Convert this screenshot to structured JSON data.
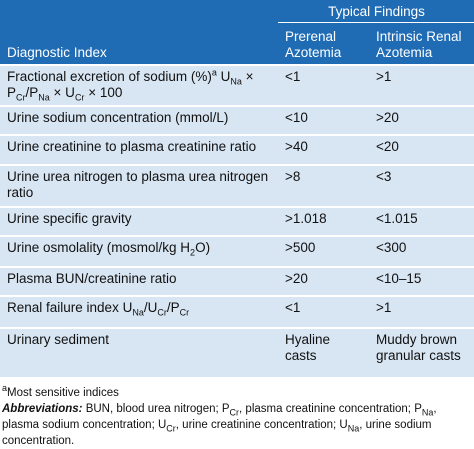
{
  "table": {
    "group_header": "Typical Findings",
    "columns": [
      "Diagnostic Index",
      "Prerenal Azotemia",
      "Intrinsic Renal Azotemia"
    ],
    "rows": [
      [
        [
          "Fractional excretion of sodium (%)",
          {
            "sup": "a"
          },
          " U",
          {
            "sub": "Na"
          },
          " × P",
          {
            "sub": "Cr"
          },
          "/P",
          {
            "sub": "Na"
          },
          " × U",
          {
            "sub": "Cr"
          },
          " × 100"
        ],
        "<1",
        ">1"
      ],
      [
        "Urine sodium concentration (mmol/L)",
        "<10",
        ">20"
      ],
      [
        "Urine creatinine to plasma creatinine ratio",
        ">40",
        "<20"
      ],
      [
        "Urine urea nitrogen to plasma urea nitrogen ratio",
        ">8",
        "<3"
      ],
      [
        "Urine specific gravity",
        ">1.018",
        "<1.015"
      ],
      [
        [
          "Urine osmolality (mosmol/kg H",
          {
            "sub": "2"
          },
          "O)"
        ],
        ">500",
        "<300"
      ],
      [
        "Plasma BUN/creatinine ratio",
        ">20",
        "<10–15"
      ],
      [
        [
          "Renal failure index U",
          {
            "sub": "Na"
          },
          "/U",
          {
            "sub": "Cr"
          },
          "/P",
          {
            "sub": "Cr"
          }
        ],
        "<1",
        ">1"
      ],
      [
        "Urinary sediment",
        "Hyaline casts",
        "Muddy brown granular casts"
      ]
    ]
  },
  "footnotes": {
    "note": [
      {
        "sup": "a"
      },
      "Most sensitive indices"
    ],
    "abbreviations_label": "Abbreviations:",
    "abbreviations": [
      " BUN, blood urea nitrogen; P",
      {
        "sub": "Cr"
      },
      ", plasma creatinine concentration; P",
      {
        "sub": "Na"
      },
      ", plasma sodium concentration; U",
      {
        "sub": "Cr"
      },
      ", urine creatinine concentration; U",
      {
        "sub": "Na"
      },
      ", urine sodium concentration."
    ]
  }
}
